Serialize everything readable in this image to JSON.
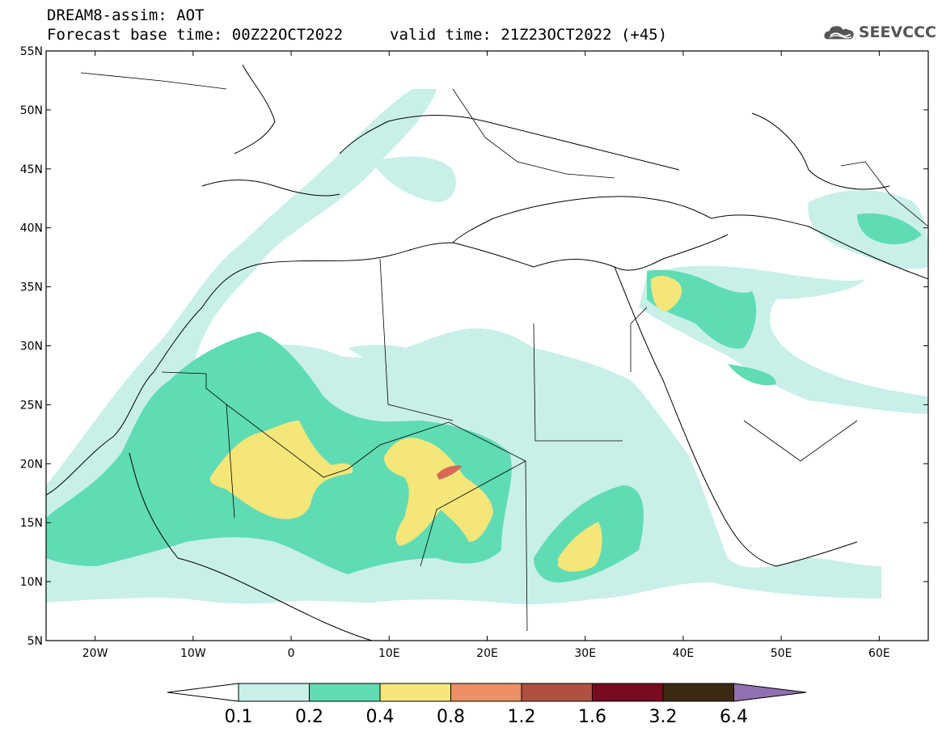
{
  "header": {
    "title_line1": "DREAM8-assim: AOT",
    "title_line2": "Forecast base time: 00Z22OCT2022",
    "valid_time": "valid time: 21Z23OCT2022 (+45)",
    "logo_text": "SEEVCCC"
  },
  "map": {
    "lon_range": [
      -25,
      65
    ],
    "lat_range": [
      5,
      55
    ],
    "lat_labels": [
      "55N",
      "50N",
      "45N",
      "40N",
      "35N",
      "30N",
      "25N",
      "20N",
      "15N",
      "10N",
      "5N"
    ],
    "lon_labels": [
      "20W",
      "10W",
      "0",
      "10E",
      "20E",
      "30E",
      "40E",
      "50E",
      "60E"
    ]
  },
  "colorbar": {
    "labels": [
      "0.1",
      "0.2",
      "0.4",
      "0.8",
      "1.2",
      "1.6",
      "3.2",
      "6.4"
    ],
    "colors": [
      "#ffffff",
      "#c8f0e8",
      "#5fdcb4",
      "#f5e67a",
      "#ec8f64",
      "#b05040",
      "#7a0a20",
      "#3a2a14",
      "#9070b0"
    ]
  },
  "fields": {
    "low_color": "#c8f0e8",
    "mid_color": "#5fdcb4",
    "high_color": "#f5e67a",
    "peak_color": "#d86858"
  }
}
